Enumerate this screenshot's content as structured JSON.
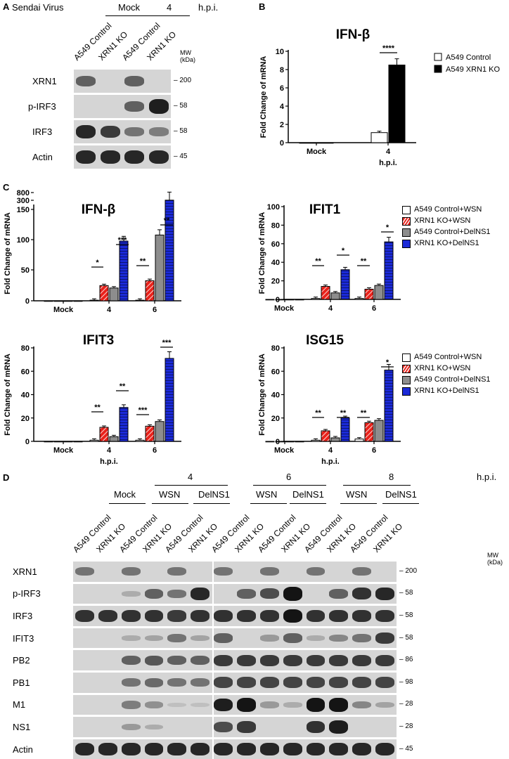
{
  "panelA": {
    "letter": "A",
    "virus_label": "Sendai Virus",
    "group_mock": "Mock",
    "group_4": "4",
    "hpi": "h.p.i.",
    "lanes": [
      "A549 Control",
      "XRN1 KO",
      "A549 Control",
      "XRN1 KO"
    ],
    "mw_header": "MW\n(kDa)",
    "rows": [
      {
        "label": "XRN1",
        "mw": "200",
        "bands": [
          0.6,
          0,
          0.6,
          0
        ]
      },
      {
        "label": "p-IRF3",
        "mw": "58",
        "bands": [
          0,
          0,
          0.6,
          0.95
        ]
      },
      {
        "label": "IRF3",
        "mw": "58",
        "bands": [
          0.9,
          0.8,
          0.5,
          0.45
        ]
      },
      {
        "label": "Actin",
        "mw": "45",
        "bands": [
          0.9,
          0.9,
          0.9,
          0.9
        ]
      }
    ]
  },
  "panelB": {
    "letter": "B",
    "title": "IFN-β",
    "ylabel": "Fold Change of mRNA",
    "xlabel": "h.p.i.",
    "legend": [
      "A549 Control",
      "A549 XRN1 KO"
    ],
    "sig": "****"
  },
  "panelC": {
    "letter": "C",
    "xlabel": "h.p.i.",
    "legend": [
      "A549 Control+WSN",
      "XRN1 KO+WSN",
      "A549 Control+DelNS1",
      "XRN1 KO+DelNS1"
    ],
    "ylabel": "Fold Change of mRNA"
  },
  "panelD": {
    "letter": "D",
    "hpi": "h.p.i.",
    "times": [
      "4",
      "6",
      "8"
    ],
    "mock": "Mock",
    "wsn": "WSN",
    "delns1": "DelNS1",
    "lanes": [
      "A549 Control",
      "XRN1 KO",
      "A549 Control",
      "XRN1 KO",
      "A549 Control",
      "XRN1 KO",
      "A549 Control",
      "XRN1 KO",
      "A549 Control",
      "XRN1 KO",
      "A549 Control",
      "XRN1 KO",
      "A549 Control",
      "XRN1 KO"
    ],
    "mw_header": "MW\n(kDa)",
    "rows": [
      {
        "label": "XRN1",
        "mw": "200",
        "bands": [
          0.5,
          0,
          0.5,
          0,
          0.5,
          0,
          0.5,
          0,
          0.5,
          0,
          0.5,
          0,
          0.5,
          0
        ]
      },
      {
        "label": "p-IRF3",
        "mw": "58",
        "bands": [
          0,
          0,
          0.2,
          0.6,
          0.5,
          0.9,
          0,
          0.6,
          0.7,
          1,
          0,
          0.6,
          0.85,
          0.9
        ]
      },
      {
        "label": "IRF3",
        "mw": "58",
        "bands": [
          0.85,
          0.85,
          0.85,
          0.85,
          0.8,
          0.85,
          0.85,
          0.85,
          0.85,
          1,
          0.85,
          0.85,
          0.85,
          0.85
        ]
      },
      {
        "label": "IFIT3",
        "mw": "58",
        "bands": [
          0,
          0,
          0.2,
          0.25,
          0.5,
          0.25,
          0.6,
          0,
          0.3,
          0.6,
          0.2,
          0.4,
          0.5,
          0.8
        ]
      },
      {
        "label": "PB2",
        "mw": "86",
        "bands": [
          0,
          0,
          0.6,
          0.65,
          0.6,
          0.6,
          0.8,
          0.8,
          0.8,
          0.8,
          0.8,
          0.8,
          0.8,
          0.8
        ]
      },
      {
        "label": "PB1",
        "mw": "98",
        "bands": [
          0,
          0,
          0.5,
          0.55,
          0.5,
          0.5,
          0.75,
          0.75,
          0.75,
          0.75,
          0.75,
          0.75,
          0.75,
          0.75
        ]
      },
      {
        "label": "M1",
        "mw": "28",
        "bands": [
          0,
          0,
          0.45,
          0.35,
          0.1,
          0.1,
          0.95,
          1,
          0.3,
          0.2,
          1,
          1,
          0.4,
          0.25
        ]
      },
      {
        "label": "NS1",
        "mw": "28",
        "bands": [
          0,
          0,
          0.3,
          0.2,
          0,
          0,
          0.7,
          0.8,
          0,
          0,
          0.85,
          0.95,
          0,
          0
        ]
      },
      {
        "label": "Actin",
        "mw": "45",
        "bands": [
          0.9,
          0.9,
          0.9,
          0.9,
          0.9,
          0.9,
          0.9,
          0.9,
          0.9,
          0.9,
          0.9,
          0.9,
          0.9,
          0.9
        ]
      }
    ]
  },
  "chart_data": [
    {
      "type": "bar",
      "title": "IFN-β",
      "categories": [
        "Mock",
        "4"
      ],
      "series": [
        {
          "name": "A549 Control",
          "values": [
            0,
            1.1
          ]
        },
        {
          "name": "A549 XRN1 KO",
          "values": [
            0,
            8.5
          ]
        }
      ],
      "xlabel": "h.p.i.",
      "ylabel": "Fold Change of mRNA",
      "ylim": [
        0,
        10
      ],
      "yticks": [
        "0",
        "2",
        "4",
        "6",
        "8",
        "10"
      ],
      "annotations": [
        "****"
      ]
    },
    {
      "type": "bar",
      "title": "IFN-β",
      "categories": [
        "Mock",
        "4",
        "6"
      ],
      "series": [
        {
          "name": "A549 Control+WSN",
          "values": [
            0,
            1,
            1
          ]
        },
        {
          "name": "XRN1 KO+WSN",
          "values": [
            0,
            25,
            33
          ]
        },
        {
          "name": "A549 Control+DelNS1",
          "values": [
            0,
            21,
            108
          ]
        },
        {
          "name": "XRN1 KO+DelNS1",
          "values": [
            0,
            98,
            700
          ]
        }
      ],
      "ylabel": "Fold Change of mRNA",
      "yticks": [
        "0",
        "50",
        "100",
        "150",
        "300",
        "800"
      ],
      "annotations": [
        "*",
        "***",
        "**",
        "**"
      ]
    },
    {
      "type": "bar",
      "title": "IFIT1",
      "categories": [
        "Mock",
        "4",
        "6"
      ],
      "series": [
        {
          "name": "A549 Control+WSN",
          "values": [
            0,
            1,
            1
          ]
        },
        {
          "name": "XRN1 KO+WSN",
          "values": [
            0,
            14,
            11
          ]
        },
        {
          "name": "A549 Control+DelNS1",
          "values": [
            0,
            7,
            15
          ]
        },
        {
          "name": "XRN1 KO+DelNS1",
          "values": [
            0,
            32,
            62
          ]
        }
      ],
      "ylabel": "Fold Change of mRNA",
      "ylim": [
        0,
        100
      ],
      "yticks": [
        "0",
        "20",
        "40",
        "60",
        "80",
        "100"
      ],
      "annotations": [
        "**",
        "*",
        "**",
        "*"
      ]
    },
    {
      "type": "bar",
      "title": "IFIT3",
      "categories": [
        "Mock",
        "4",
        "6"
      ],
      "series": [
        {
          "name": "A549 Control+WSN",
          "values": [
            0,
            1,
            1
          ]
        },
        {
          "name": "XRN1 KO+WSN",
          "values": [
            0,
            12,
            13
          ]
        },
        {
          "name": "A549 Control+DelNS1",
          "values": [
            0,
            4,
            17
          ]
        },
        {
          "name": "XRN1 KO+DelNS1",
          "values": [
            0,
            29,
            71
          ]
        }
      ],
      "xlabel": "h.p.i.",
      "ylabel": "Fold Change of mRNA",
      "ylim": [
        0,
        80
      ],
      "yticks": [
        "0",
        "20",
        "40",
        "60",
        "80"
      ],
      "annotations": [
        "**",
        "**",
        "***",
        "***"
      ]
    },
    {
      "type": "bar",
      "title": "ISG15",
      "categories": [
        "Mock",
        "4",
        "6"
      ],
      "series": [
        {
          "name": "A549 Control+WSN",
          "values": [
            0,
            1,
            2
          ]
        },
        {
          "name": "XRN1 KO+WSN",
          "values": [
            0,
            9,
            16
          ]
        },
        {
          "name": "A549 Control+DelNS1",
          "values": [
            0,
            3,
            18
          ]
        },
        {
          "name": "XRN1 KO+DelNS1",
          "values": [
            0,
            20,
            61
          ]
        }
      ],
      "xlabel": "h.p.i.",
      "ylabel": "Fold Change of mRNA",
      "ylim": [
        0,
        80
      ],
      "yticks": [
        "0",
        "20",
        "40",
        "60",
        "80"
      ],
      "annotations": [
        "**",
        "**",
        "**",
        "*"
      ]
    }
  ]
}
